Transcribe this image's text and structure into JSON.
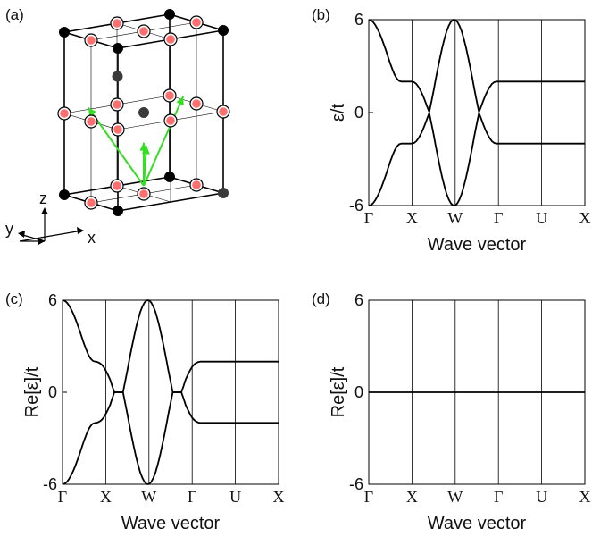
{
  "figure": {
    "panels": {
      "a": {
        "label": "(a)"
      },
      "b": {
        "label": "(b)"
      },
      "c": {
        "label": "(c)"
      },
      "d": {
        "label": "(d)"
      }
    },
    "lattice_axes": {
      "z": "z",
      "y": "y",
      "x": "x"
    },
    "colors": {
      "curve": "#000000",
      "lattice_edge": "#000000",
      "corner_site": "#000000",
      "inner_site": "#3a3a3a",
      "face_site_fill": "#ff6f6f",
      "arrows": "#33dd22"
    }
  },
  "chart_data": [
    {
      "panel": "(b)",
      "type": "line",
      "ylabel": "ε/t",
      "xlabel": "Wave vector",
      "ylim": [
        -6,
        6
      ],
      "yticks": [
        -6,
        0,
        6
      ],
      "x_tick_labels": [
        "Γ",
        "X",
        "W",
        "Γ",
        "U",
        "X"
      ],
      "x": [
        0,
        0.05,
        0.1,
        0.15,
        0.2,
        0.25,
        0.3,
        0.35,
        0.4,
        0.45,
        0.5,
        0.55,
        0.6,
        0.65,
        0.7,
        0.75,
        0.8,
        0.85,
        0.9,
        0.95,
        1,
        1.05,
        1.1,
        1.15,
        1.2,
        1.25,
        1.3,
        1.35,
        1.4,
        1.45,
        1.5,
        1.55,
        1.6,
        1.65,
        1.7,
        1.75,
        1.8,
        1.85,
        1.9,
        1.95,
        2,
        2.05,
        2.1,
        2.15,
        2.2,
        2.25,
        2.3,
        2.35,
        2.4,
        2.45,
        2.5,
        2.55,
        2.6,
        2.65,
        2.7,
        2.75,
        2.8,
        2.85,
        2.9,
        2.95,
        3,
        3.05,
        3.1,
        3.15,
        3.2,
        3.25,
        3.3,
        3.35,
        3.4,
        3.45,
        3.5,
        3.55,
        3.6,
        3.65,
        3.7,
        3.75,
        3.8,
        3.85,
        3.9,
        3.95,
        4,
        4.05,
        4.1,
        4.15,
        4.2,
        4.25,
        4.3,
        4.35,
        4.4,
        4.45,
        4.5,
        4.55,
        4.6,
        4.65,
        4.7,
        4.75,
        4.8,
        4.85,
        4.9,
        4.95,
        5
      ],
      "series": [
        {
          "values": [
            6,
            5.96,
            5.85,
            5.66,
            5.41,
            5.12,
            4.77,
            4.39,
            3.99,
            3.56,
            3.14,
            2.77,
            2.43,
            2.2,
            2.05,
            2,
            2,
            2,
            2,
            2,
            2,
            1.96,
            1.85,
            1.66,
            1.41,
            1.12,
            0.77,
            0.39,
            0.04,
            0.71,
            1.41,
            2.17,
            2.88,
            3.56,
            4.2,
            4.75,
            5.24,
            5.6,
            5.86,
            5.99,
            5.99,
            5.86,
            5.6,
            5.24,
            4.75,
            4.2,
            3.56,
            2.88,
            2.17,
            1.41,
            0.71,
            0.04,
            0.39,
            0.77,
            1.12,
            1.41,
            1.66,
            1.85,
            1.96,
            2,
            2,
            2,
            2,
            2,
            2,
            2,
            2,
            2,
            2,
            2,
            2,
            2,
            2,
            2,
            2,
            2,
            2,
            2,
            2,
            2,
            2,
            2,
            2,
            2,
            2,
            2,
            2,
            2,
            2,
            2,
            2,
            2,
            2,
            2,
            2,
            2,
            2,
            2,
            2,
            2,
            2
          ]
        },
        {
          "values": [
            -6,
            -5.96,
            -5.85,
            -5.66,
            -5.41,
            -5.12,
            -4.77,
            -4.39,
            -3.99,
            -3.56,
            -3.14,
            -2.77,
            -2.43,
            -2.2,
            -2.05,
            -2,
            -2,
            -2,
            -2,
            -2,
            -2,
            -1.96,
            -1.85,
            -1.66,
            -1.41,
            -1.12,
            -0.77,
            -0.39,
            -0.04,
            -0.71,
            -1.41,
            -2.17,
            -2.88,
            -3.56,
            -4.2,
            -4.75,
            -5.24,
            -5.6,
            -5.86,
            -5.99,
            -5.99,
            -5.86,
            -5.6,
            -5.24,
            -4.75,
            -4.2,
            -3.56,
            -2.88,
            -2.17,
            -1.41,
            -0.71,
            -0.04,
            -0.39,
            -0.77,
            -1.12,
            -1.41,
            -1.66,
            -1.85,
            -1.96,
            -2,
            -2,
            -2,
            -2,
            -2,
            -2,
            -2,
            -2,
            -2,
            -2,
            -2,
            -2,
            -2,
            -2,
            -2,
            -2,
            -2,
            -2,
            -2,
            -2,
            -2,
            -2,
            -2,
            -2,
            -2,
            -2,
            -2,
            -2,
            -2,
            -2,
            -2,
            -2,
            -2,
            -2,
            -2,
            -2,
            -2,
            -2,
            -2,
            -2,
            -2,
            -2
          ]
        }
      ]
    },
    {
      "panel": "(c)",
      "type": "line",
      "ylabel": "Re[ε]/t",
      "xlabel": "Wave vector",
      "ylim": [
        -6,
        6
      ],
      "yticks": [
        -6,
        0,
        6
      ],
      "x_tick_labels": [
        "Γ",
        "X",
        "W",
        "Γ",
        "U",
        "X"
      ],
      "x": [
        0,
        0.05,
        0.1,
        0.15,
        0.2,
        0.25,
        0.3,
        0.35,
        0.4,
        0.45,
        0.5,
        0.55,
        0.6,
        0.65,
        0.7,
        0.75,
        0.8,
        0.85,
        0.9,
        0.95,
        1,
        1.05,
        1.1,
        1.15,
        1.2,
        1.25,
        1.3,
        1.35,
        1.4,
        1.45,
        1.5,
        1.55,
        1.6,
        1.65,
        1.7,
        1.75,
        1.8,
        1.85,
        1.9,
        1.95,
        2,
        2.05,
        2.1,
        2.15,
        2.2,
        2.25,
        2.3,
        2.35,
        2.4,
        2.45,
        2.5,
        2.55,
        2.6,
        2.65,
        2.7,
        2.75,
        2.8,
        2.85,
        2.9,
        2.95,
        3,
        3.05,
        3.1,
        3.15,
        3.2,
        3.25,
        3.3,
        3.35,
        3.4,
        3.45,
        3.5,
        3.55,
        3.6,
        3.65,
        3.7,
        3.75,
        3.8,
        3.85,
        3.9,
        3.95,
        4,
        4.05,
        4.1,
        4.15,
        4.2,
        4.25,
        4.3,
        4.35,
        4.4,
        4.45,
        4.5,
        4.55,
        4.6,
        4.65,
        4.7,
        4.75,
        4.8,
        4.85,
        4.9,
        4.95,
        5
      ],
      "series": [
        {
          "values": [
            6,
            5.96,
            5.85,
            5.66,
            5.41,
            5.12,
            4.77,
            4.39,
            3.99,
            3.56,
            3.14,
            2.77,
            2.43,
            2.2,
            2.05,
            2,
            1.98,
            1.92,
            1.82,
            1.66,
            1.42,
            1.14,
            0.84,
            0.4,
            0,
            0,
            0,
            0,
            0,
            0.71,
            1.41,
            2.17,
            2.88,
            3.56,
            4.2,
            4.75,
            5.24,
            5.6,
            5.86,
            5.99,
            5.99,
            5.86,
            5.6,
            5.24,
            4.75,
            4.2,
            3.56,
            2.88,
            2.17,
            1.41,
            0.71,
            0,
            0,
            0,
            0,
            0,
            0.4,
            0.84,
            1.14,
            1.42,
            1.66,
            1.82,
            1.92,
            1.98,
            2,
            2,
            2,
            2,
            2,
            2,
            2,
            2,
            2,
            2,
            2,
            2,
            2,
            2,
            2,
            2,
            2,
            2,
            2,
            2,
            2,
            2,
            2,
            2,
            2,
            2,
            2,
            2,
            2,
            2,
            2,
            2,
            2,
            2,
            2,
            2,
            2
          ]
        },
        {
          "values": [
            -6,
            -5.96,
            -5.85,
            -5.66,
            -5.41,
            -5.12,
            -4.77,
            -4.39,
            -3.99,
            -3.56,
            -3.14,
            -2.77,
            -2.43,
            -2.2,
            -2.05,
            -2,
            -1.98,
            -1.92,
            -1.82,
            -1.66,
            -1.42,
            -1.14,
            -0.84,
            -0.4,
            0,
            0,
            0,
            0,
            0,
            -0.71,
            -1.41,
            -2.17,
            -2.88,
            -3.56,
            -4.2,
            -4.75,
            -5.24,
            -5.6,
            -5.86,
            -5.99,
            -5.99,
            -5.86,
            -5.6,
            -5.24,
            -4.75,
            -4.2,
            -3.56,
            -2.88,
            -2.17,
            -1.41,
            -0.71,
            0,
            0,
            0,
            0,
            0,
            -0.4,
            -0.84,
            -1.14,
            -1.42,
            -1.66,
            -1.82,
            -1.92,
            -1.98,
            -2,
            -2,
            -2,
            -2,
            -2,
            -2,
            -2,
            -2,
            -2,
            -2,
            -2,
            -2,
            -2,
            -2,
            -2,
            -2,
            -2,
            -2,
            -2,
            -2,
            -2,
            -2,
            -2,
            -2,
            -2,
            -2,
            -2,
            -2,
            -2,
            -2,
            -2,
            -2,
            -2,
            -2,
            -2,
            -2,
            -2
          ]
        }
      ]
    },
    {
      "panel": "(d)",
      "type": "line",
      "ylabel": "Re[ε]/t",
      "xlabel": "Wave vector",
      "ylim": [
        -6,
        6
      ],
      "yticks": [
        -6,
        0,
        6
      ],
      "x_tick_labels": [
        "Γ",
        "X",
        "W",
        "Γ",
        "U",
        "X"
      ],
      "x": [
        0,
        5
      ],
      "series": [
        {
          "values": [
            0,
            0
          ]
        }
      ]
    }
  ]
}
